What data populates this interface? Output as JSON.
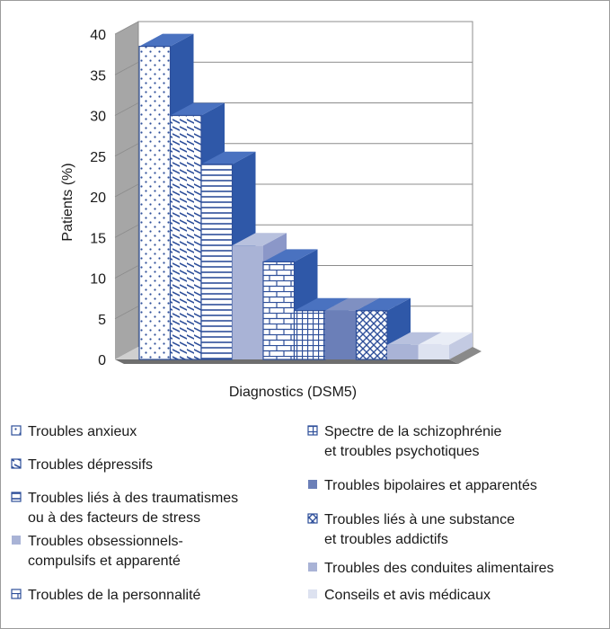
{
  "chart_data": {
    "type": "bar",
    "ylabel": "Patients (%)",
    "xlabel": "Diagnostics (DSM5)",
    "ylim": [
      0,
      40
    ],
    "yticks": [
      0,
      5,
      10,
      15,
      20,
      25,
      30,
      35,
      40
    ],
    "grid": true,
    "legend_position": "bottom",
    "series": [
      {
        "name": "Troubles anxieux",
        "value": 38.5,
        "color": "#ffffff",
        "pattern": "dots",
        "legend_lines": [
          "Troubles anxieux"
        ]
      },
      {
        "name": "Troubles dépressifs",
        "value": 30,
        "color": "#ffffff",
        "pattern": "diagonal",
        "legend_lines": [
          "Troubles dépressifs"
        ]
      },
      {
        "name": "Troubles liés à des traumatismes ou à des facteurs de stress",
        "value": 24,
        "color": "#ffffff",
        "pattern": "horizontal",
        "legend_lines": [
          "Troubles liés à des traumatismes",
          "ou à des facteurs de stress"
        ]
      },
      {
        "name": "Troubles obsessionnels-compulsifs et apparenté",
        "value": 14,
        "color": "#a9b3d6",
        "pattern": "solid",
        "legend_lines": [
          "Troubles obsessionnels-",
          "compulsifs et apparenté"
        ]
      },
      {
        "name": "Troubles de la personnalité",
        "value": 12,
        "color": "#ffffff",
        "pattern": "brick",
        "legend_lines": [
          "Troubles de la personnalité"
        ]
      },
      {
        "name": "Spectre de la schizophrénie et troubles psychotiques",
        "value": 6,
        "color": "#ffffff",
        "pattern": "grid",
        "legend_lines": [
          "Spectre de la schizophrénie",
          "et troubles psychotiques"
        ]
      },
      {
        "name": "Troubles bipolaires et apparentés",
        "value": 6,
        "color": "#6b7fb8",
        "pattern": "solid",
        "legend_lines": [
          "Troubles bipolaires et apparentés"
        ]
      },
      {
        "name": "Troubles liés à une substance et troubles addictifs",
        "value": 6,
        "color": "#ffffff",
        "pattern": "crosshatch",
        "legend_lines": [
          "Troubles liés à une substance",
          "et troubles addictifs"
        ]
      },
      {
        "name": "Troubles des conduites alimentaires",
        "value": 1.8,
        "color": "#a9b3d6",
        "pattern": "solid",
        "legend_lines": [
          "Troubles des conduites alimentaires"
        ]
      },
      {
        "name": "Conseils et avis médicaux",
        "value": 1.8,
        "color": "#dde2f0",
        "pattern": "solid",
        "legend_lines": [
          "Conseils et avis médicaux"
        ]
      }
    ]
  }
}
